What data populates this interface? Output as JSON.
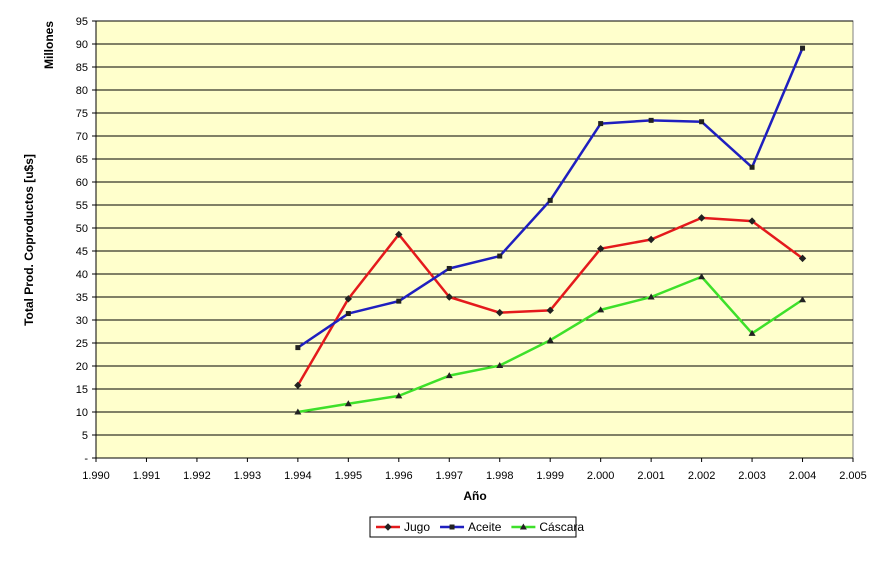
{
  "chart_data": {
    "type": "line",
    "title": "",
    "xlabel": "Año",
    "ylabel": "Total Prod. Coproductos [u$s]",
    "y_unit": "Millones",
    "xlim": [
      1990,
      2005
    ],
    "ylim": [
      0,
      95
    ],
    "x_ticks": [
      "1.990",
      "1.991",
      "1.992",
      "1.993",
      "1.994",
      "1.995",
      "1.996",
      "1.997",
      "1.998",
      "1.999",
      "2.000",
      "2.001",
      "2.002",
      "2.003",
      "2.004",
      "2.005"
    ],
    "y_ticks": [
      "-",
      "5",
      "10",
      "15",
      "20",
      "25",
      "30",
      "35",
      "40",
      "45",
      "50",
      "55",
      "60",
      "65",
      "70",
      "75",
      "80",
      "85",
      "90",
      "95"
    ],
    "grid": true,
    "legend_position": "bottom",
    "x": [
      1994,
      1995,
      1996,
      1997,
      1998,
      1999,
      2000,
      2001,
      2002,
      2003,
      2004
    ],
    "series": [
      {
        "name": "Jugo",
        "color": "#e41a1c",
        "marker": "diamond",
        "values": [
          15.8,
          34.6,
          48.6,
          35.0,
          31.6,
          32.1,
          45.5,
          47.5,
          52.2,
          51.5,
          43.4
        ]
      },
      {
        "name": "Aceite",
        "color": "#1f1fbf",
        "marker": "square",
        "values": [
          24.0,
          31.4,
          34.1,
          41.2,
          43.9,
          56.0,
          72.7,
          73.4,
          73.1,
          63.2,
          89.1
        ]
      },
      {
        "name": "Cáscara",
        "color": "#3ee02a",
        "marker": "triangle",
        "values": [
          10.0,
          11.8,
          13.5,
          17.9,
          20.1,
          25.6,
          32.2,
          35.0,
          39.4,
          27.1,
          34.4
        ]
      }
    ],
    "plot_background": "#ffffcc"
  }
}
